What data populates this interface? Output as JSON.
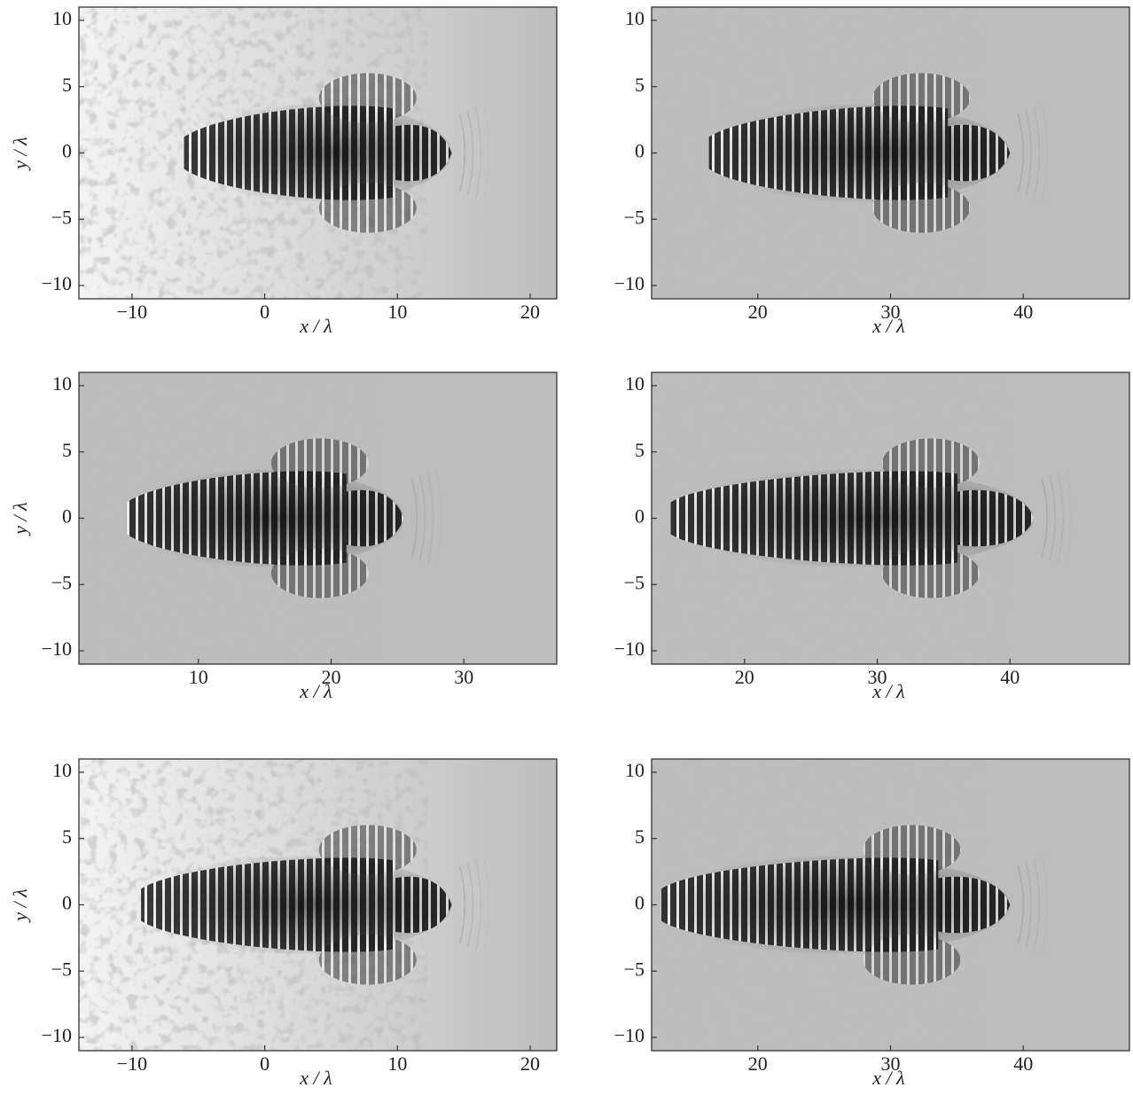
{
  "chart_data": [
    {
      "type": "image",
      "xlim": [
        -14,
        22
      ],
      "ylim": [
        -11,
        11
      ],
      "xticks": [
        {
          "value": -10,
          "label": "−10"
        },
        0,
        10,
        20
      ],
      "yticks": [
        {
          "value": -10,
          "label": "−10"
        },
        {
          "value": -5,
          "label": "−5"
        },
        0,
        5,
        10
      ],
      "xlabel": "x / λ",
      "ylabel": "y / λ"
    },
    {
      "type": "image",
      "xlim": [
        12,
        48
      ],
      "ylim": [
        -11,
        11
      ],
      "xticks": [
        20,
        30,
        40
      ],
      "yticks": [
        {
          "value": -10,
          "label": "−10"
        },
        {
          "value": -5,
          "label": "−5"
        },
        0,
        5,
        10
      ],
      "xlabel": "x / λ"
    },
    {
      "type": "image",
      "xlim": [
        1,
        37
      ],
      "ylim": [
        -11,
        11
      ],
      "xticks": [
        10,
        20,
        30
      ],
      "yticks": [
        {
          "value": -10,
          "label": "−10"
        },
        {
          "value": -5,
          "label": "−5"
        },
        0,
        5,
        10
      ],
      "xlabel": "x / λ",
      "ylabel": "y / λ"
    },
    {
      "type": "image",
      "xlim": [
        13,
        49
      ],
      "ylim": [
        -11,
        11
      ],
      "xticks": [
        20,
        30,
        40
      ],
      "yticks": [
        {
          "value": -10,
          "label": "−10"
        },
        {
          "value": -5,
          "label": "−5"
        },
        0,
        5,
        10
      ],
      "xlabel": "x / λ"
    },
    {
      "type": "image",
      "xlim": [
        -14,
        22
      ],
      "ylim": [
        -11,
        11
      ],
      "xticks": [
        {
          "value": -10,
          "label": "−10"
        },
        0,
        10,
        20
      ],
      "yticks": [
        {
          "value": -10,
          "label": "−10"
        },
        {
          "value": -5,
          "label": "−5"
        },
        0,
        5,
        10
      ],
      "xlabel": "x / λ",
      "ylabel": "y / λ"
    },
    {
      "type": "image",
      "xlim": [
        12,
        48
      ],
      "ylim": [
        -11,
        11
      ],
      "xticks": [
        20,
        30,
        40
      ],
      "yticks": [
        {
          "value": -10,
          "label": "−10"
        },
        {
          "value": -5,
          "label": "−5"
        },
        0,
        5,
        10
      ],
      "xlabel": "x / λ"
    }
  ]
}
